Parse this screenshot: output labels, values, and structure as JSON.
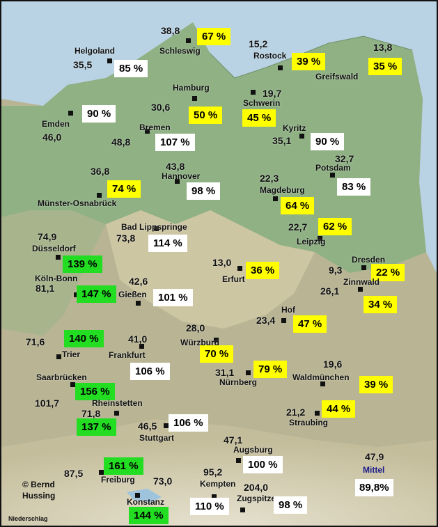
{
  "colors": {
    "sea": "#b9d3e4",
    "lowland": "#8fb184",
    "highland": "#c8c1a0",
    "mountain": "#e2ddc9",
    "white_box": "#ffffff",
    "yellow_box": "#ffff00",
    "green_box": "#22dd22",
    "mittel_label": "#1a1a8c"
  },
  "stations": [
    {
      "name": "Schleswig",
      "value": "38,8",
      "percent": "67 %",
      "level": "yellow"
    },
    {
      "name": "Helgoland",
      "value": "35,5",
      "percent": "85 %",
      "level": "white"
    },
    {
      "name": "Rostock",
      "value": "15,2",
      "percent": "39 %",
      "level": "yellow"
    },
    {
      "name": "Greifswald",
      "value": "13,8",
      "percent": "35 %",
      "level": "yellow"
    },
    {
      "name": "Emden",
      "value": "46,0",
      "percent": "90 %",
      "level": "white"
    },
    {
      "name": "Hamburg",
      "value": "30,6",
      "percent": "50 %",
      "level": "yellow"
    },
    {
      "name": "Schwerin",
      "value": "19,7",
      "percent": "45 %",
      "level": "yellow"
    },
    {
      "name": "Bremen",
      "value": "48,8",
      "percent": "107 %",
      "level": "white"
    },
    {
      "name": "Kyritz",
      "value": "35,1",
      "percent": "90 %",
      "level": "white"
    },
    {
      "name": "Potsdam",
      "value": "32,7",
      "percent": "83 %",
      "level": "white"
    },
    {
      "name": "Münster-Osnabrück",
      "value": "36,8",
      "percent": "74 %",
      "level": "yellow"
    },
    {
      "name": "Hannover",
      "value": "43,8",
      "percent": "98 %",
      "level": "white"
    },
    {
      "name": "Magdeburg",
      "value": "22,3",
      "percent": "64 %",
      "level": "yellow"
    },
    {
      "name": "Bad Lippspringe",
      "value": "73,8",
      "percent": "114 %",
      "level": "white"
    },
    {
      "name": "Leipzig",
      "value": "22,7",
      "percent": "62 %",
      "level": "yellow"
    },
    {
      "name": "Düsseldorf",
      "value": "74,9",
      "percent": "139 %",
      "level": "green"
    },
    {
      "name": "Köln-Bonn",
      "value": "81,1",
      "percent": "147 %",
      "level": "green"
    },
    {
      "name": "Erfurt",
      "value": "13,0",
      "percent": "36 %",
      "level": "yellow"
    },
    {
      "name": "Dresden",
      "value": "9,3",
      "percent": "22 %",
      "level": "yellow"
    },
    {
      "name": "Gießen",
      "value": "42,6",
      "percent": "101 %",
      "level": "white"
    },
    {
      "name": "Zinnwald",
      "value": "26,1",
      "percent": "34 %",
      "level": "yellow"
    },
    {
      "name": "Hof",
      "value": "23,4",
      "percent": "47 %",
      "level": "yellow"
    },
    {
      "name": "Trier",
      "value": "71,6",
      "percent": "140 %",
      "level": "green"
    },
    {
      "name": "Frankfurt",
      "value": "41,0",
      "percent": "106 %",
      "level": "white"
    },
    {
      "name": "Würzburg",
      "value": "28,0",
      "percent": "70 %",
      "level": "yellow"
    },
    {
      "name": "Nürnberg",
      "value": "31,1",
      "percent": "79 %",
      "level": "yellow"
    },
    {
      "name": "Waldmünchen",
      "value": "19,6",
      "percent": "39 %",
      "level": "yellow"
    },
    {
      "name": "Saarbrücken",
      "value": "101,7",
      "percent": "156 %",
      "level": "green"
    },
    {
      "name": "Rheinstetten",
      "value": "71,8",
      "percent": "137 %",
      "level": "green"
    },
    {
      "name": "Stuttgart",
      "value": "46,5",
      "percent": "106 %",
      "level": "white"
    },
    {
      "name": "Straubing",
      "value": "21,2",
      "percent": "44 %",
      "level": "yellow"
    },
    {
      "name": "Augsburg",
      "value": "47,1",
      "percent": "100 %",
      "level": "white"
    },
    {
      "name": "Freiburg",
      "value": "87,5",
      "percent": "161 %",
      "level": "green"
    },
    {
      "name": "Kempten",
      "value": "95,2",
      "percent": "110 %",
      "level": "white"
    },
    {
      "name": "Zugspitze",
      "value": "204,0",
      "percent": "98 %",
      "level": "white"
    },
    {
      "name": "Konstanz",
      "value": "73,0",
      "percent": "144 %",
      "level": "green"
    }
  ],
  "mittel": {
    "label": "Mittel",
    "value": "47,9",
    "percent": "89,8%"
  },
  "credit": {
    "line1": "© Bernd",
    "line2": "Hussing"
  },
  "footer": "Niederschlag"
}
